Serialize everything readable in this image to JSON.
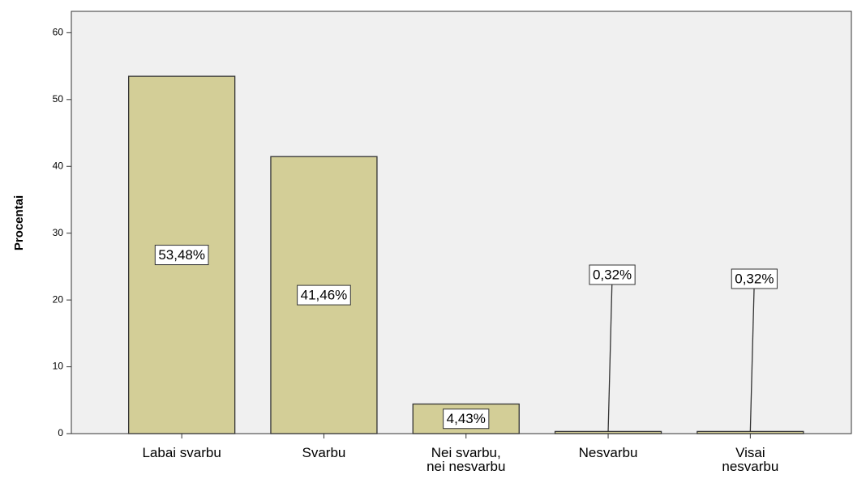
{
  "chart_data": {
    "type": "bar",
    "y_label": "Procentai",
    "categories": [
      "Labai svarbu",
      "Svarbu",
      "Nei svarbu, nei nesvarbu",
      "Nesvarbu",
      "Visai nesvarbu"
    ],
    "values": [
      53.48,
      41.46,
      4.43,
      0.32,
      0.32
    ],
    "value_labels": [
      "53,48%",
      "41,46%",
      "4,43%",
      "0,32%",
      "0,32%"
    ],
    "color": "#d3ce97",
    "ylim": [
      0,
      63.2
    ],
    "yticks": [
      0,
      10,
      20,
      30,
      40,
      50,
      60
    ]
  }
}
